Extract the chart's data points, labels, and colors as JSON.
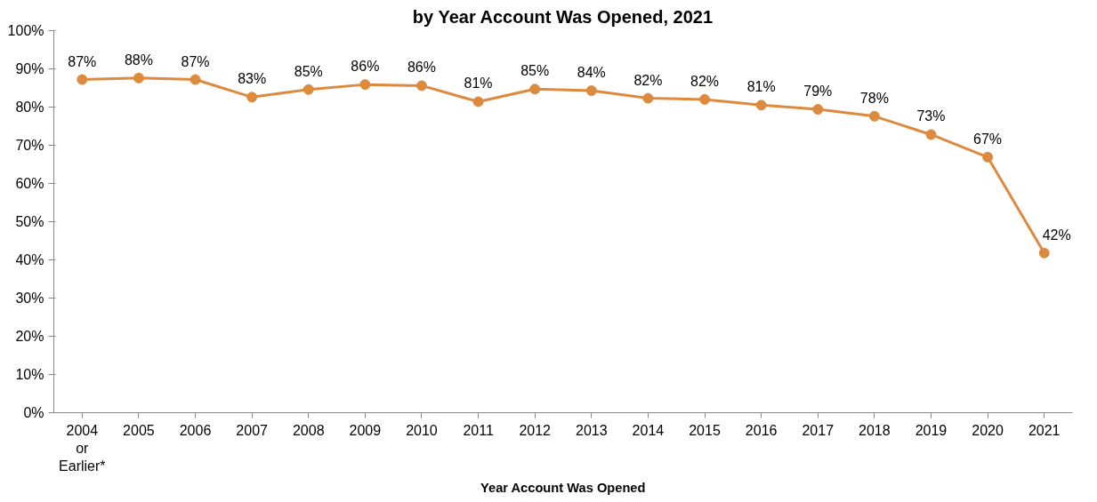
{
  "chart_data": {
    "type": "line",
    "title": "by Year Account Was Opened, 2021",
    "xlabel": "Year Account Was Opened",
    "categories": [
      "2004\nor\nEarlier*",
      "2005",
      "2006",
      "2007",
      "2008",
      "2009",
      "2010",
      "2011",
      "2012",
      "2013",
      "2014",
      "2015",
      "2016",
      "2017",
      "2018",
      "2019",
      "2020",
      "2021"
    ],
    "series": [
      {
        "color": "#dd8a3e",
        "values": [
          87.2,
          87.6,
          87.2,
          82.6,
          84.6,
          85.9,
          85.6,
          81.4,
          84.7,
          84.3,
          82.3,
          82.0,
          80.5,
          79.4,
          77.6,
          72.8,
          66.9,
          41.8
        ],
        "value_labels": [
          "87%",
          "88%",
          "87%",
          "83%",
          "85%",
          "86%",
          "86%",
          "81%",
          "85%",
          "84%",
          "82%",
          "82%",
          "81%",
          "79%",
          "78%",
          "73%",
          "67%",
          "42%"
        ]
      }
    ],
    "ylim": [
      0,
      100
    ],
    "yticks": [
      {
        "value": 0,
        "label": "0%"
      },
      {
        "value": 10,
        "label": "10%"
      },
      {
        "value": 20,
        "label": "20%"
      },
      {
        "value": 30,
        "label": "30%"
      },
      {
        "value": 40,
        "label": "40%"
      },
      {
        "value": 50,
        "label": "50%"
      },
      {
        "value": 60,
        "label": "60%"
      },
      {
        "value": 70,
        "label": "70%"
      },
      {
        "value": 80,
        "label": "80%"
      },
      {
        "value": 90,
        "label": "90%"
      },
      {
        "value": 100,
        "label": "100%"
      }
    ],
    "marker": "circle",
    "line_style": "solid"
  }
}
